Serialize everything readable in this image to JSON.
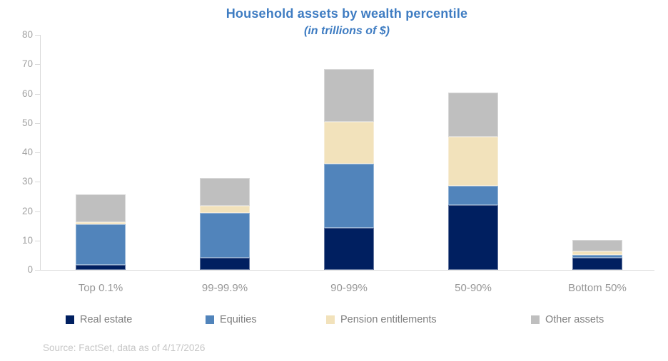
{
  "chart": {
    "title": "Household assets by wealth percentile",
    "subtitle": "(in trillions of $)",
    "source": "Source: FactSet, data as of 4/17/2026"
  },
  "colors": {
    "title_text": "#3E7CC2",
    "axis_line": "#D9D9D9",
    "y_tick_text": "#A3A3A3",
    "x_label_text": "#969696",
    "legend_text": "#7F7F7F",
    "source_text": "#C6C6C6"
  },
  "chart_data": {
    "type": "bar",
    "stacked": true,
    "title": "Household assets by wealth percentile",
    "subtitle": "(in trillions of $)",
    "xlabel": "",
    "ylabel": "",
    "ylim": [
      0,
      80
    ],
    "yticks": [
      0,
      10,
      20,
      30,
      40,
      50,
      60,
      70,
      80
    ],
    "grid": false,
    "legend_position": "bottom",
    "categories": [
      "Top 0.1%",
      "99-99.9%",
      "90-99%",
      "50-90%",
      "Bottom 50%"
    ],
    "series": [
      {
        "name": "Real estate",
        "color": "#001F60",
        "values": [
          1.8,
          4.1,
          14.4,
          22.1,
          4.1
        ]
      },
      {
        "name": "Equities",
        "color": "#5184BB",
        "values": [
          13.8,
          15.2,
          21.7,
          6.6,
          1.0
        ]
      },
      {
        "name": "Pension entitlements",
        "color": "#F2E2BB",
        "values": [
          0.7,
          2.6,
          14.4,
          16.6,
          1.2
        ]
      },
      {
        "name": "Other assets",
        "color": "#BFBFBF",
        "values": [
          9.4,
          9.3,
          17.9,
          15.1,
          3.9
        ]
      }
    ],
    "totals": [
      25.7,
      31.2,
      68.4,
      60.4,
      10.2
    ],
    "source": "Source: FactSet, data as of 4/17/2026"
  }
}
